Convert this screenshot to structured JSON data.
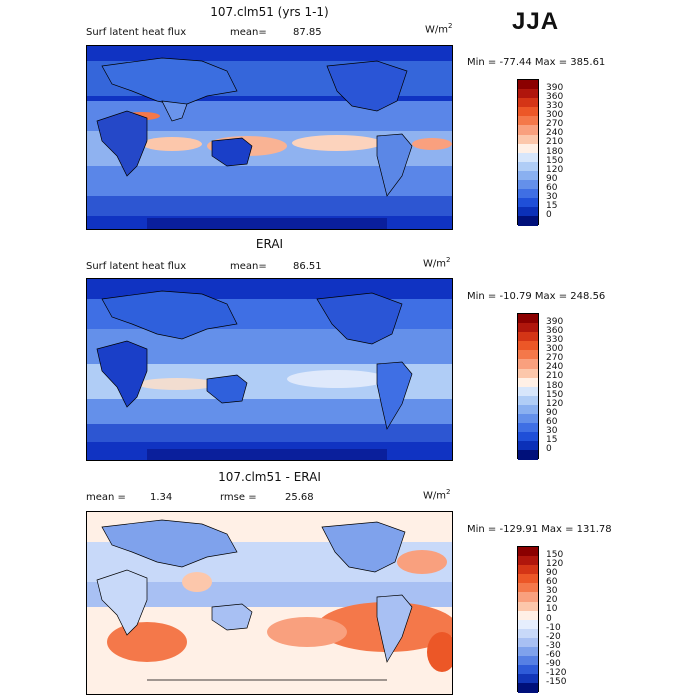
{
  "season": "JJA",
  "panels": [
    {
      "title": "107.clm51 (yrs 1-1)",
      "left_label": "Surf latent heat flux",
      "stat_label": "mean=",
      "stat_value": "87.85",
      "unit": "W/m",
      "unit_exp": "2",
      "min_max": "Min = -77.44 Max = 385.61",
      "colorbar_labels": [
        "390",
        "360",
        "330",
        "300",
        "270",
        "240",
        "210",
        "180",
        "150",
        "120",
        "90",
        "60",
        "30",
        "15",
        "0"
      ],
      "colorbar_colors": [
        "#8b0000",
        "#b0160c",
        "#d43516",
        "#ec5727",
        "#f4784a",
        "#f9a07e",
        "#fcc7ab",
        "#fff0e6",
        "#d7e6fb",
        "#b0cdf6",
        "#8ab0f0",
        "#6490ea",
        "#3f6fe4",
        "#1f4fd8",
        "#0b30b8",
        "#00107a"
      ]
    },
    {
      "title": "ERAI",
      "left_label": "Surf latent heat flux",
      "stat_label": "mean=",
      "stat_value": "86.51",
      "unit": "W/m",
      "unit_exp": "2",
      "min_max": "Min = -10.79 Max = 248.56",
      "colorbar_labels": [
        "390",
        "360",
        "330",
        "300",
        "270",
        "240",
        "210",
        "180",
        "150",
        "120",
        "90",
        "60",
        "30",
        "15",
        "0"
      ],
      "colorbar_colors": [
        "#8b0000",
        "#b0160c",
        "#d43516",
        "#ec5727",
        "#f4784a",
        "#f9a07e",
        "#fcc7ab",
        "#fff0e6",
        "#d7e6fb",
        "#b0cdf6",
        "#8ab0f0",
        "#6490ea",
        "#3f6fe4",
        "#1f4fd8",
        "#0b30b8",
        "#00107a"
      ]
    },
    {
      "title": "107.clm51 - ERAI",
      "left_label": "mean =",
      "left_value": "1.34",
      "stat_label": "rmse =",
      "stat_value": "25.68",
      "unit": "W/m",
      "unit_exp": "2",
      "min_max": "Min = -129.91 Max = 131.78",
      "colorbar_labels": [
        "150",
        "120",
        "90",
        "60",
        "30",
        "20",
        "10",
        "0",
        "-10",
        "-20",
        "-30",
        "-60",
        "-90",
        "-120",
        "-150"
      ],
      "colorbar_colors": [
        "#8b0000",
        "#b0160c",
        "#d43516",
        "#ec5727",
        "#f4784a",
        "#f9a07e",
        "#fcc7ab",
        "#fff0e6",
        "#e6eefd",
        "#c8d9f9",
        "#a8c0f3",
        "#7fa2ec",
        "#5680e4",
        "#2e5bd8",
        "#1236b8",
        "#00107a"
      ]
    }
  ]
}
